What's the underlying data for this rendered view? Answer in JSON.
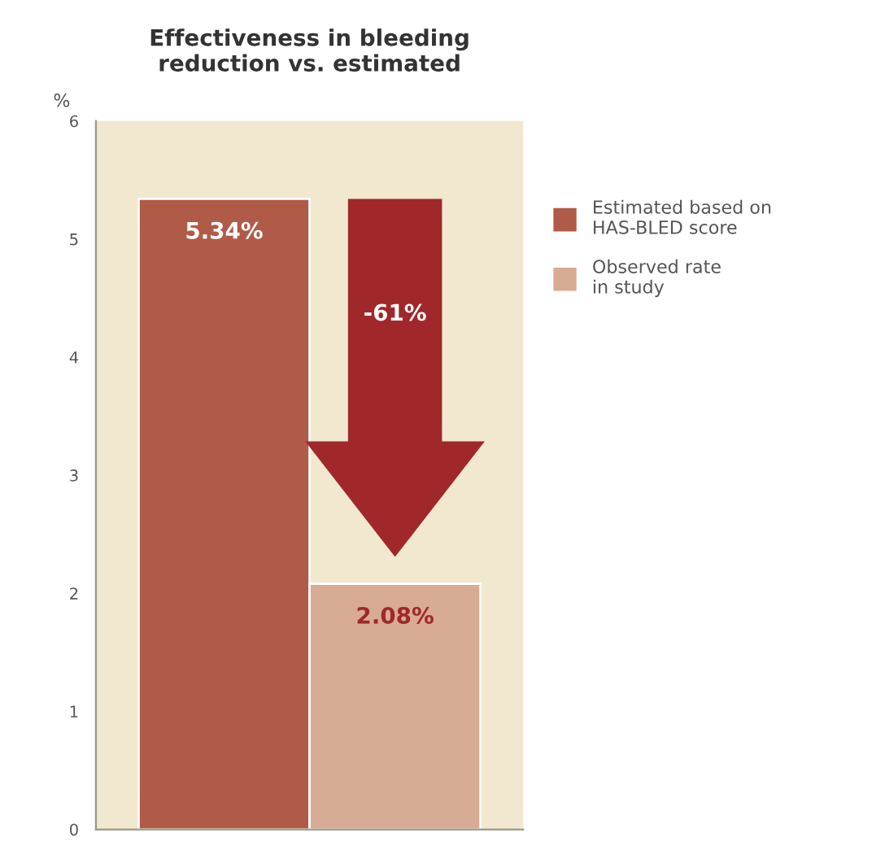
{
  "chart_data": {
    "type": "bar",
    "title": "Effectiveness in bleeding\nreduction vs. estimated",
    "ylabel": "%",
    "categories": [
      null
    ],
    "series": [
      {
        "name": "Estimated based on\nHAS-BLED score",
        "color": "#b05a48",
        "values": [
          5.34
        ],
        "value_labels": [
          "5.34%"
        ]
      },
      {
        "name": "Observed rate\nin study",
        "color": "#d8ab94",
        "values": [
          2.08
        ],
        "value_labels": [
          "2.08%"
        ]
      }
    ],
    "annotations": [
      "-61%"
    ],
    "ylim": [
      0,
      6
    ],
    "yticks": [
      0,
      1,
      2,
      3,
      4,
      5,
      6
    ],
    "grid": false,
    "legend": "right"
  }
}
